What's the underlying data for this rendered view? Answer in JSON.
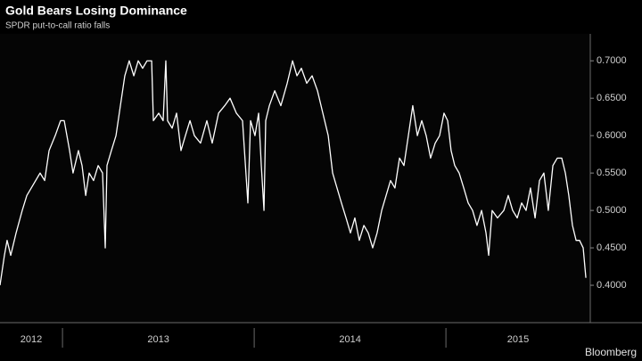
{
  "chart_data": {
    "type": "line",
    "title": "Gold Bears Losing Dominance",
    "subtitle": "SPDR put-to-call ratio falls",
    "source": "Bloomberg",
    "xlim": [
      2012.674,
      2015.753
    ],
    "xticks": [
      {
        "value": 2012,
        "label": "2012"
      },
      {
        "value": 2013,
        "label": "2013"
      },
      {
        "value": 2014,
        "label": "2014"
      },
      {
        "value": 2015,
        "label": "2015"
      }
    ],
    "ylim": [
      0.35,
      0.736
    ],
    "yticks": [
      {
        "value": 0.4,
        "label": "0.4000"
      },
      {
        "value": 0.45,
        "label": "0.4500"
      },
      {
        "value": 0.5,
        "label": "0.5000"
      },
      {
        "value": 0.55,
        "label": "0.5500"
      },
      {
        "value": 0.6,
        "label": "0.6000"
      },
      {
        "value": 0.65,
        "label": "0.6500"
      },
      {
        "value": 0.7,
        "label": "0.7000"
      }
    ],
    "grid": false,
    "series": [
      {
        "color": "#ffffff",
        "x": [
          2012.674,
          2012.697,
          2012.711,
          2012.73,
          2012.758,
          2012.79,
          2012.814,
          2012.837,
          2012.86,
          2012.883,
          2012.907,
          2012.93,
          2012.962,
          2012.99,
          2013.009,
          2013.037,
          2013.055,
          2013.083,
          2013.102,
          2013.121,
          2013.139,
          2013.162,
          2013.186,
          2013.209,
          2013.223,
          2013.232,
          2013.255,
          2013.279,
          2013.302,
          2013.325,
          2013.348,
          2013.372,
          2013.395,
          2013.418,
          2013.441,
          2013.465,
          2013.474,
          2013.502,
          2013.525,
          2013.539,
          2013.548,
          2013.572,
          2013.595,
          2013.618,
          2013.641,
          2013.665,
          2013.688,
          2013.72,
          2013.753,
          2013.781,
          2013.814,
          2013.846,
          2013.874,
          2013.907,
          2013.939,
          2013.967,
          2013.981,
          2014.004,
          2014.023,
          2014.037,
          2014.051,
          2014.06,
          2014.079,
          2014.107,
          2014.139,
          2014.172,
          2014.2,
          2014.223,
          2014.246,
          2014.274,
          2014.302,
          2014.33,
          2014.358,
          2014.386,
          2014.409,
          2014.432,
          2014.455,
          2014.479,
          2014.502,
          2014.525,
          2014.548,
          2014.572,
          2014.595,
          2014.618,
          2014.641,
          2014.665,
          2014.688,
          2014.711,
          2014.734,
          2014.758,
          2014.781,
          2014.804,
          2014.827,
          2014.851,
          2014.874,
          2014.897,
          2014.92,
          2014.944,
          2014.967,
          2014.99,
          2015.009,
          2015.027,
          2015.046,
          2015.069,
          2015.093,
          2015.116,
          2015.139,
          2015.162,
          2015.186,
          2015.209,
          2015.223,
          2015.241,
          2015.269,
          2015.302,
          2015.325,
          2015.348,
          2015.372,
          2015.395,
          2015.418,
          2015.441,
          2015.465,
          2015.488,
          2015.511,
          2015.534,
          2015.558,
          2015.581,
          2015.604,
          2015.623,
          2015.641,
          2015.66,
          2015.679,
          2015.697,
          2015.716,
          2015.73
        ],
        "values": [
          0.4,
          0.44,
          0.46,
          0.44,
          0.47,
          0.5,
          0.52,
          0.53,
          0.54,
          0.55,
          0.54,
          0.58,
          0.6,
          0.62,
          0.62,
          0.58,
          0.55,
          0.58,
          0.56,
          0.52,
          0.55,
          0.54,
          0.56,
          0.55,
          0.45,
          0.56,
          0.58,
          0.6,
          0.64,
          0.68,
          0.7,
          0.68,
          0.7,
          0.69,
          0.7,
          0.7,
          0.62,
          0.63,
          0.62,
          0.7,
          0.62,
          0.61,
          0.63,
          0.58,
          0.6,
          0.62,
          0.6,
          0.59,
          0.62,
          0.59,
          0.63,
          0.64,
          0.65,
          0.63,
          0.62,
          0.51,
          0.62,
          0.6,
          0.63,
          0.56,
          0.5,
          0.62,
          0.64,
          0.66,
          0.64,
          0.67,
          0.7,
          0.68,
          0.69,
          0.67,
          0.68,
          0.66,
          0.63,
          0.6,
          0.55,
          0.53,
          0.51,
          0.49,
          0.47,
          0.49,
          0.46,
          0.48,
          0.47,
          0.45,
          0.47,
          0.5,
          0.52,
          0.54,
          0.53,
          0.57,
          0.56,
          0.6,
          0.64,
          0.6,
          0.62,
          0.6,
          0.57,
          0.59,
          0.6,
          0.63,
          0.62,
          0.58,
          0.56,
          0.55,
          0.53,
          0.51,
          0.5,
          0.48,
          0.5,
          0.47,
          0.44,
          0.5,
          0.49,
          0.5,
          0.52,
          0.5,
          0.49,
          0.51,
          0.5,
          0.53,
          0.49,
          0.54,
          0.55,
          0.5,
          0.56,
          0.57,
          0.57,
          0.55,
          0.52,
          0.48,
          0.46,
          0.46,
          0.45,
          0.41
        ]
      }
    ]
  }
}
